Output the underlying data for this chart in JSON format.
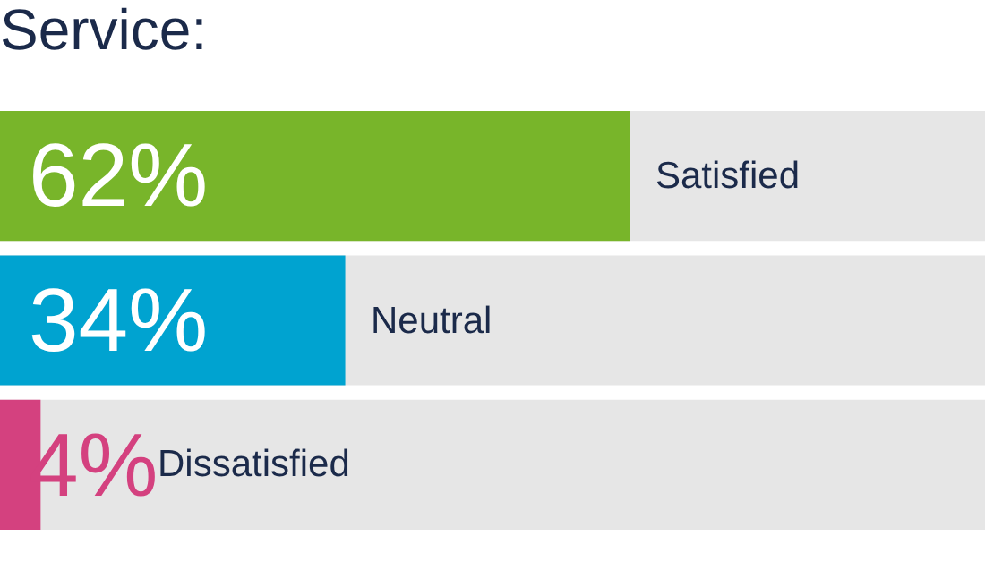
{
  "chart_data": {
    "type": "bar",
    "orientation": "horizontal",
    "title": "Service:",
    "categories": [
      "Satisfied",
      "Neutral",
      "Dissatisfied"
    ],
    "values": [
      62,
      34,
      4
    ],
    "colors": [
      "#78b52a",
      "#00a3d0",
      "#d4417f"
    ],
    "value_labels": [
      "62%",
      "34%",
      "4%"
    ],
    "xlim": [
      0,
      97
    ]
  }
}
